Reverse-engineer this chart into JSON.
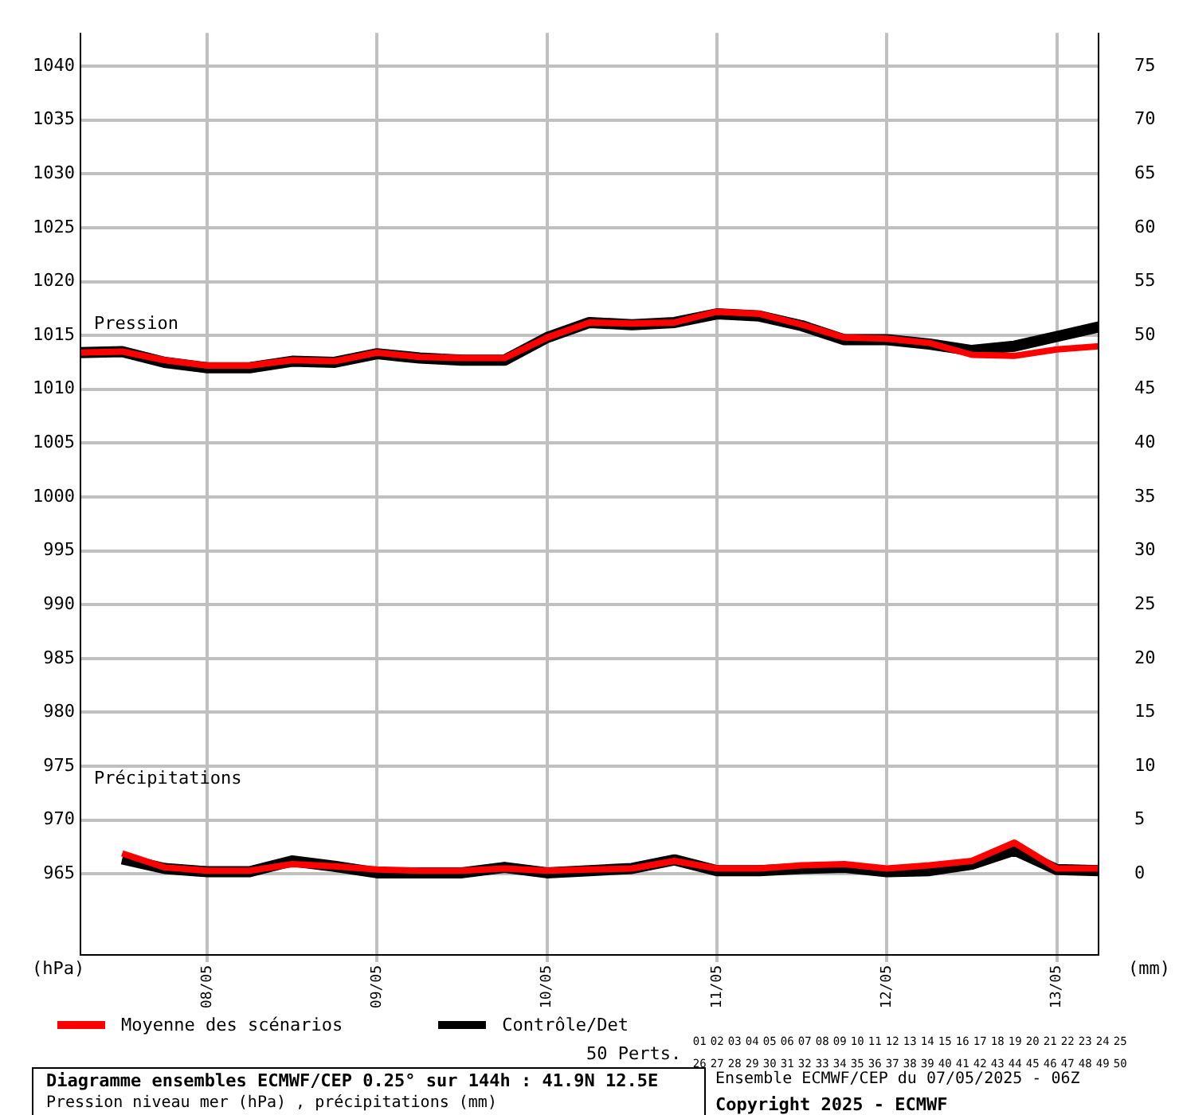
{
  "chart_data": {
    "type": "line",
    "title": "Diagramme ensembles ECMWF/CEP 0.25° sur 144h : 41.9N 12.5E",
    "subtitle": "Pression niveau mer (hPa) , précipitations (mm)",
    "ylabel": "(hPa)",
    "y2label": "(mm)",
    "x": [
      "2025-05-07T06:00",
      "2025-05-07T12:00",
      "2025-05-07T18:00",
      "2025-05-08T00:00",
      "2025-05-08T06:00",
      "2025-05-08T12:00",
      "2025-05-08T18:00",
      "2025-05-09T00:00",
      "2025-05-09T06:00",
      "2025-05-09T12:00",
      "2025-05-09T18:00",
      "2025-05-10T00:00",
      "2025-05-10T06:00",
      "2025-05-10T12:00",
      "2025-05-10T18:00",
      "2025-05-11T00:00",
      "2025-05-11T06:00",
      "2025-05-11T12:00",
      "2025-05-11T18:00",
      "2025-05-12T00:00",
      "2025-05-12T06:00",
      "2025-05-12T12:00",
      "2025-05-12T18:00",
      "2025-05-13T00:00",
      "2025-05-13T06:00"
    ],
    "series": [
      {
        "name": "Moyenne des scénarios",
        "color": "#ff0000",
        "values": [
          1013.4,
          1013.5,
          1012.7,
          1012.2,
          1012.2,
          1012.7,
          1012.6,
          1013.4,
          1013.0,
          1012.9,
          1012.9,
          1014.8,
          1016.2,
          1016.1,
          1016.2,
          1017.2,
          1017.0,
          1016.0,
          1014.8,
          1014.7,
          1014.3,
          1013.2,
          1013.1,
          1013.7,
          1014.0
        ]
      },
      {
        "name": "Contrôle/Det",
        "color": "#000000",
        "values": [
          1013.4,
          1013.5,
          1012.5,
          1012.0,
          1012.0,
          1012.6,
          1012.5,
          1013.3,
          1012.9,
          1012.7,
          1012.7,
          1014.8,
          1016.2,
          1016.0,
          1016.2,
          1017.0,
          1016.8,
          1015.9,
          1014.6,
          1014.6,
          1014.2,
          1013.6,
          1014.0,
          1014.9,
          1015.8
        ]
      },
      {
        "color": "#ff0000",
        "axis": "y2",
        "values": [
          null,
          1.9,
          0.6,
          0.3,
          0.3,
          0.9,
          0.7,
          0.4,
          0.3,
          0.3,
          0.5,
          0.3,
          0.4,
          0.5,
          1.2,
          0.5,
          0.5,
          0.8,
          0.9,
          0.5,
          0.8,
          1.2,
          2.9,
          0.5,
          0.5
        ]
      },
      {
        "color": "#000000",
        "axis": "y2",
        "values": [
          null,
          1.4,
          0.5,
          0.2,
          0.2,
          1.2,
          0.7,
          0.1,
          0.1,
          0.1,
          0.6,
          0.1,
          0.3,
          0.5,
          1.3,
          0.3,
          0.3,
          0.5,
          0.6,
          0.2,
          0.3,
          0.9,
          2.2,
          0.4,
          0.3
        ]
      }
    ],
    "xlim": [
      "2025-05-07T06:00",
      "2025-05-13T06:00"
    ],
    "xticks": [
      {
        "value": "2025-05-08T00:00",
        "label": "08/05"
      },
      {
        "value": "2025-05-09T00:00",
        "label": "09/05"
      },
      {
        "value": "2025-05-10T00:00",
        "label": "10/05"
      },
      {
        "value": "2025-05-11T00:00",
        "label": "11/05"
      },
      {
        "value": "2025-05-12T00:00",
        "label": "12/05"
      },
      {
        "value": "2025-05-13T00:00",
        "label": "13/05"
      }
    ],
    "ylim": [
      957.4,
      1043.1
    ],
    "yticks": [
      965,
      970,
      975,
      980,
      985,
      990,
      995,
      1000,
      1005,
      1010,
      1015,
      1020,
      1025,
      1030,
      1035,
      1040
    ],
    "y2lim": [
      -7.6,
      78.1
    ],
    "y2ticks": [
      0,
      5,
      10,
      15,
      20,
      25,
      30,
      35,
      40,
      45,
      50,
      55,
      60,
      65,
      70,
      75
    ],
    "grid": true,
    "legend": "bottom",
    "marker": "none",
    "line_style": "solid",
    "annotations": [
      "Pression",
      "Précipitations",
      "Ensemble ECMWF/CEP du 07/05/2025 - 06Z",
      "Copyright 2025 - ECMWF",
      "50 Perts.",
      "01",
      "02",
      "03",
      "04",
      "05",
      "06",
      "07",
      "08",
      "09",
      "10",
      "11",
      "12",
      "13",
      "14",
      "15",
      "16",
      "17",
      "18",
      "19",
      "20",
      "21",
      "22",
      "23",
      "24",
      "25",
      "26",
      "27",
      "28",
      "29",
      "30",
      "31",
      "32",
      "33",
      "34",
      "35",
      "36",
      "37",
      "38",
      "39",
      "40",
      "41",
      "42",
      "43",
      "44",
      "45",
      "46",
      "47",
      "48",
      "49",
      "50"
    ]
  }
}
